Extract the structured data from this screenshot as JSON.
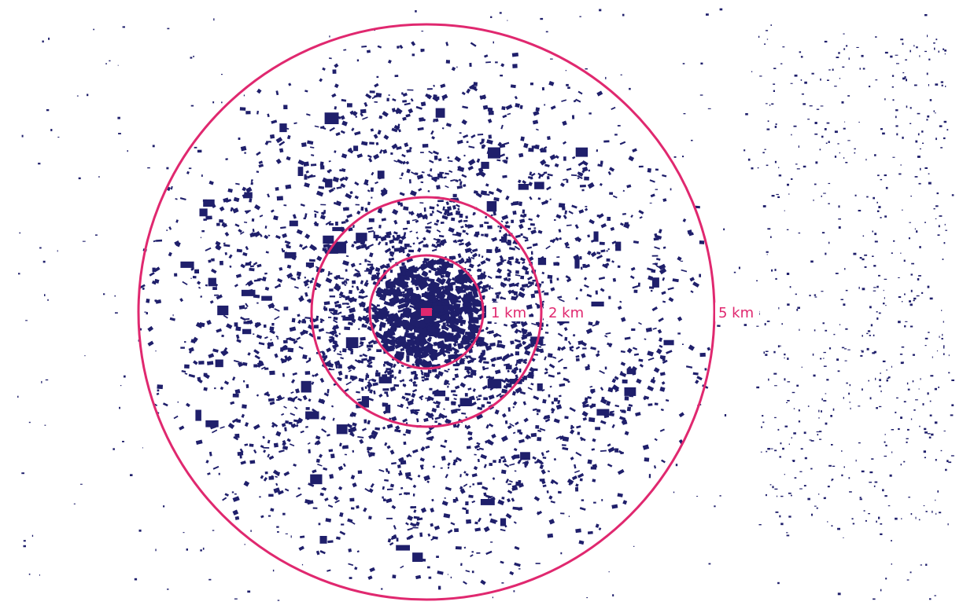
{
  "map": {
    "colors": {
      "buildings": "#1f1f6b",
      "rings": "#e0286f",
      "center_marker": "#e0286f",
      "background": "#ffffff"
    },
    "rings": [
      {
        "distance_km": 1,
        "label": "1 km"
      },
      {
        "distance_km": 2,
        "label": "2 km"
      },
      {
        "distance_km": 5,
        "label": "5 km"
      }
    ],
    "center_marker": "center-marker"
  }
}
